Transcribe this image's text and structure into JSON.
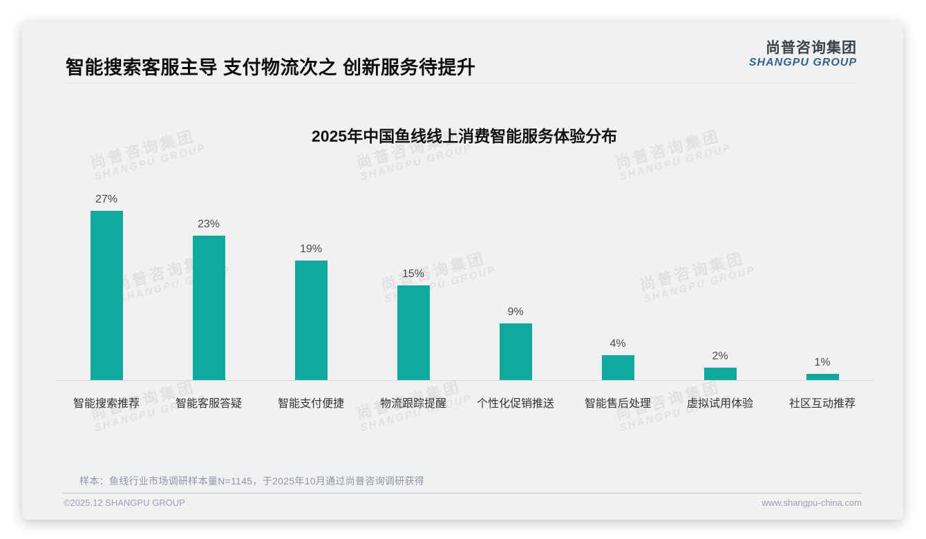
{
  "page": {
    "title": "智能搜索客服主导 支付物流次之 创新服务待提升",
    "logo": {
      "cn": "尚普咨询集团",
      "en": "SHANGPU GROUP"
    },
    "watermark": {
      "cn": "尚普咨询集团",
      "en": "SHANGPU GROUP"
    },
    "note": "样本：鱼线行业市场调研样本量N=1145，于2025年10月通过尚普咨询调研获得",
    "footer": {
      "left": "©2025.12 SHANGPU GROUP",
      "right": "www.shangpu-china.com"
    }
  },
  "chart_data": {
    "type": "bar",
    "title": "2025年中国鱼线线上消费智能服务体验分布",
    "categories": [
      "智能搜索推荐",
      "智能客服答疑",
      "智能支付便捷",
      "物流跟踪提醒",
      "个性化促销推送",
      "智能售后处理",
      "虚拟试用体验",
      "社区互动推荐"
    ],
    "values": [
      27,
      23,
      19,
      15,
      9,
      4,
      2,
      1
    ],
    "value_labels": [
      "27%",
      "23%",
      "19%",
      "15%",
      "9%",
      "4%",
      "2%",
      "1%"
    ],
    "unit": "%",
    "bar_color": "#0FA9A1",
    "xlabel": "",
    "ylabel": "",
    "ylim": [
      0,
      30
    ],
    "grid": false,
    "legend": "none"
  }
}
